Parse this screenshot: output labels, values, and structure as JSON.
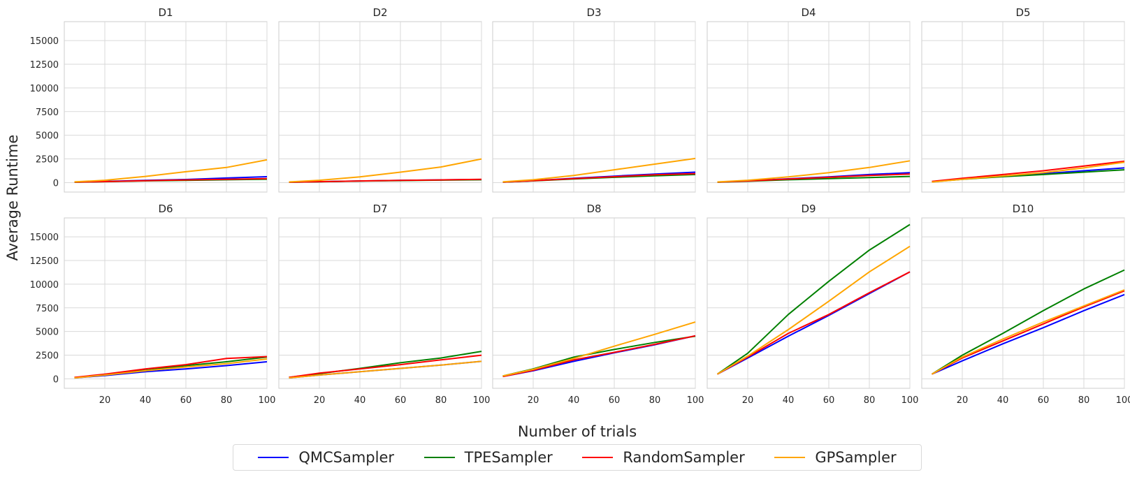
{
  "figure": {
    "ylabel": "Average Runtime",
    "xlabel": "Number of trials"
  },
  "legend": [
    {
      "name": "QMCSampler",
      "color": "#0000ff"
    },
    {
      "name": "TPESampler",
      "color": "#008000"
    },
    {
      "name": "RandomSampler",
      "color": "#ff0000"
    },
    {
      "name": "GPSampler",
      "color": "#ffa500"
    }
  ],
  "chart_data": [
    {
      "type": "line",
      "title": "D1",
      "xlim": [
        0,
        100
      ],
      "ylim": [
        -1000,
        17000
      ],
      "x_ticks": [
        20,
        40,
        60,
        80,
        100
      ],
      "y_ticks": [
        0,
        2500,
        5000,
        7500,
        10000,
        12500,
        15000
      ],
      "x": [
        5,
        20,
        40,
        60,
        80,
        100
      ],
      "series": [
        {
          "name": "QMCSampler",
          "color": "#0000ff",
          "values": [
            50,
            120,
            230,
            330,
            480,
            620
          ]
        },
        {
          "name": "TPESampler",
          "color": "#008000",
          "values": [
            40,
            100,
            180,
            240,
            300,
            360
          ]
        },
        {
          "name": "RandomSampler",
          "color": "#ff0000",
          "values": [
            50,
            110,
            200,
            280,
            350,
            420
          ]
        },
        {
          "name": "GPSampler",
          "color": "#ffa500",
          "values": [
            80,
            250,
            650,
            1150,
            1600,
            2400
          ]
        }
      ]
    },
    {
      "type": "line",
      "title": "D2",
      "xlim": [
        0,
        100
      ],
      "ylim": [
        -1000,
        17000
      ],
      "x_ticks": [
        20,
        40,
        60,
        80,
        100
      ],
      "y_ticks": [
        0,
        2500,
        5000,
        7500,
        10000,
        12500,
        15000
      ],
      "x": [
        5,
        20,
        40,
        60,
        80,
        100
      ],
      "series": [
        {
          "name": "QMCSampler",
          "color": "#0000ff",
          "values": [
            40,
            100,
            170,
            230,
            280,
            330
          ]
        },
        {
          "name": "TPESampler",
          "color": "#008000",
          "values": [
            40,
            90,
            160,
            210,
            260,
            300
          ]
        },
        {
          "name": "RandomSampler",
          "color": "#ff0000",
          "values": [
            40,
            100,
            170,
            230,
            280,
            340
          ]
        },
        {
          "name": "GPSampler",
          "color": "#ffa500",
          "values": [
            70,
            250,
            600,
            1100,
            1650,
            2500
          ]
        }
      ]
    },
    {
      "type": "line",
      "title": "D3",
      "xlim": [
        0,
        100
      ],
      "ylim": [
        -1000,
        17000
      ],
      "x_ticks": [
        20,
        40,
        60,
        80,
        100
      ],
      "y_ticks": [
        0,
        2500,
        5000,
        7500,
        10000,
        12500,
        15000
      ],
      "x": [
        5,
        20,
        40,
        60,
        80,
        100
      ],
      "series": [
        {
          "name": "QMCSampler",
          "color": "#0000ff",
          "values": [
            50,
            200,
            450,
            680,
            900,
            1100
          ]
        },
        {
          "name": "TPESampler",
          "color": "#008000",
          "values": [
            50,
            180,
            380,
            560,
            720,
            850
          ]
        },
        {
          "name": "RandomSampler",
          "color": "#ff0000",
          "values": [
            50,
            200,
            420,
            620,
            820,
            950
          ]
        },
        {
          "name": "GPSampler",
          "color": "#ffa500",
          "values": [
            80,
            300,
            750,
            1350,
            1950,
            2550
          ]
        }
      ]
    },
    {
      "type": "line",
      "title": "D4",
      "xlim": [
        0,
        100
      ],
      "ylim": [
        -1000,
        17000
      ],
      "x_ticks": [
        20,
        40,
        60,
        80,
        100
      ],
      "y_ticks": [
        0,
        2500,
        5000,
        7500,
        10000,
        12500,
        15000
      ],
      "x": [
        5,
        20,
        40,
        60,
        80,
        100
      ],
      "series": [
        {
          "name": "QMCSampler",
          "color": "#0000ff",
          "values": [
            50,
            180,
            400,
            600,
            850,
            1050
          ]
        },
        {
          "name": "TPESampler",
          "color": "#008000",
          "values": [
            40,
            140,
            300,
            420,
            530,
            650
          ]
        },
        {
          "name": "RandomSampler",
          "color": "#ff0000",
          "values": [
            50,
            170,
            370,
            560,
            750,
            900
          ]
        },
        {
          "name": "GPSampler",
          "color": "#ffa500",
          "values": [
            70,
            250,
            600,
            1050,
            1600,
            2300
          ]
        }
      ]
    },
    {
      "type": "line",
      "title": "D5",
      "xlim": [
        0,
        100
      ],
      "ylim": [
        -1000,
        17000
      ],
      "x_ticks": [
        20,
        40,
        60,
        80,
        100
      ],
      "y_ticks": [
        0,
        2500,
        5000,
        7500,
        10000,
        12500,
        15000
      ],
      "x": [
        5,
        20,
        40,
        60,
        80,
        100
      ],
      "series": [
        {
          "name": "QMCSampler",
          "color": "#0000ff",
          "values": [
            100,
            400,
            700,
            950,
            1250,
            1550
          ]
        },
        {
          "name": "TPESampler",
          "color": "#008000",
          "values": [
            80,
            350,
            620,
            850,
            1100,
            1350
          ]
        },
        {
          "name": "RandomSampler",
          "color": "#ff0000",
          "values": [
            120,
            450,
            850,
            1250,
            1750,
            2250
          ]
        },
        {
          "name": "GPSampler",
          "color": "#ffa500",
          "values": [
            60,
            350,
            700,
            1050,
            1550,
            2150
          ]
        }
      ]
    },
    {
      "type": "line",
      "title": "D6",
      "xlim": [
        0,
        100
      ],
      "ylim": [
        -1000,
        17000
      ],
      "x_ticks": [
        20,
        40,
        60,
        80,
        100
      ],
      "y_ticks": [
        0,
        2500,
        5000,
        7500,
        10000,
        12500,
        15000
      ],
      "x": [
        5,
        20,
        40,
        60,
        80,
        100
      ],
      "series": [
        {
          "name": "QMCSampler",
          "color": "#0000ff",
          "values": [
            100,
            350,
            750,
            1050,
            1400,
            1800
          ]
        },
        {
          "name": "TPESampler",
          "color": "#008000",
          "values": [
            120,
            450,
            900,
            1400,
            1800,
            2300
          ]
        },
        {
          "name": "RandomSampler",
          "color": "#ff0000",
          "values": [
            150,
            500,
            1050,
            1500,
            2150,
            2350
          ]
        },
        {
          "name": "GPSampler",
          "color": "#ffa500",
          "values": [
            100,
            400,
            850,
            1250,
            1600,
            2100
          ]
        }
      ]
    },
    {
      "type": "line",
      "title": "D7",
      "xlim": [
        0,
        100
      ],
      "ylim": [
        -1000,
        17000
      ],
      "x_ticks": [
        20,
        40,
        60,
        80,
        100
      ],
      "y_ticks": [
        0,
        2500,
        5000,
        7500,
        10000,
        12500,
        15000
      ],
      "x": [
        5,
        20,
        40,
        60,
        80,
        100
      ],
      "series": [
        {
          "name": "QMCSampler",
          "color": "#0000ff",
          "values": [
            100,
            400,
            750,
            1100,
            1450,
            1850
          ]
        },
        {
          "name": "TPESampler",
          "color": "#008000",
          "values": [
            150,
            550,
            1100,
            1700,
            2200,
            2900
          ]
        },
        {
          "name": "RandomSampler",
          "color": "#ff0000",
          "values": [
            150,
            600,
            1050,
            1500,
            2000,
            2500
          ]
        },
        {
          "name": "GPSampler",
          "color": "#ffa500",
          "values": [
            100,
            400,
            750,
            1100,
            1450,
            1850
          ]
        }
      ]
    },
    {
      "type": "line",
      "title": "D8",
      "xlim": [
        0,
        100
      ],
      "ylim": [
        -1000,
        17000
      ],
      "x_ticks": [
        20,
        40,
        60,
        80,
        100
      ],
      "y_ticks": [
        0,
        2500,
        5000,
        7500,
        10000,
        12500,
        15000
      ],
      "x": [
        5,
        20,
        40,
        60,
        80,
        100
      ],
      "series": [
        {
          "name": "QMCSampler",
          "color": "#0000ff",
          "values": [
            250,
            850,
            1850,
            2750,
            3600,
            4550
          ]
        },
        {
          "name": "TPESampler",
          "color": "#008000",
          "values": [
            300,
            1050,
            2300,
            3100,
            3850,
            4500
          ]
        },
        {
          "name": "RandomSampler",
          "color": "#ff0000",
          "values": [
            250,
            900,
            2000,
            2800,
            3650,
            4550
          ]
        },
        {
          "name": "GPSampler",
          "color": "#ffa500",
          "values": [
            300,
            1000,
            2150,
            3450,
            4700,
            6000
          ]
        }
      ]
    },
    {
      "type": "line",
      "title": "D9",
      "xlim": [
        0,
        100
      ],
      "ylim": [
        -1000,
        17000
      ],
      "x_ticks": [
        20,
        40,
        60,
        80,
        100
      ],
      "y_ticks": [
        0,
        2500,
        5000,
        7500,
        10000,
        12500,
        15000
      ],
      "x": [
        5,
        20,
        40,
        60,
        80,
        100
      ],
      "series": [
        {
          "name": "QMCSampler",
          "color": "#0000ff",
          "values": [
            500,
            2200,
            4500,
            6700,
            9000,
            11300
          ]
        },
        {
          "name": "TPESampler",
          "color": "#008000",
          "values": [
            500,
            2700,
            6800,
            10300,
            13600,
            16300
          ]
        },
        {
          "name": "RandomSampler",
          "color": "#ff0000",
          "values": [
            500,
            2300,
            4800,
            6800,
            9100,
            11300
          ]
        },
        {
          "name": "GPSampler",
          "color": "#ffa500",
          "values": [
            500,
            2400,
            5200,
            8200,
            11300,
            14000
          ]
        }
      ]
    },
    {
      "type": "line",
      "title": "D10",
      "xlim": [
        0,
        100
      ],
      "ylim": [
        -1000,
        17000
      ],
      "x_ticks": [
        20,
        40,
        60,
        80,
        100
      ],
      "y_ticks": [
        0,
        2500,
        5000,
        7500,
        10000,
        12500,
        15000
      ],
      "x": [
        5,
        20,
        40,
        60,
        80,
        100
      ],
      "series": [
        {
          "name": "QMCSampler",
          "color": "#0000ff",
          "values": [
            500,
            1900,
            3700,
            5400,
            7200,
            8900
          ]
        },
        {
          "name": "TPESampler",
          "color": "#008000",
          "values": [
            500,
            2500,
            4800,
            7200,
            9500,
            11500
          ]
        },
        {
          "name": "RandomSampler",
          "color": "#ff0000",
          "values": [
            500,
            2200,
            4000,
            5800,
            7600,
            9300
          ]
        },
        {
          "name": "GPSampler",
          "color": "#ffa500",
          "values": [
            500,
            2300,
            4200,
            6000,
            7700,
            9400
          ]
        }
      ]
    }
  ]
}
